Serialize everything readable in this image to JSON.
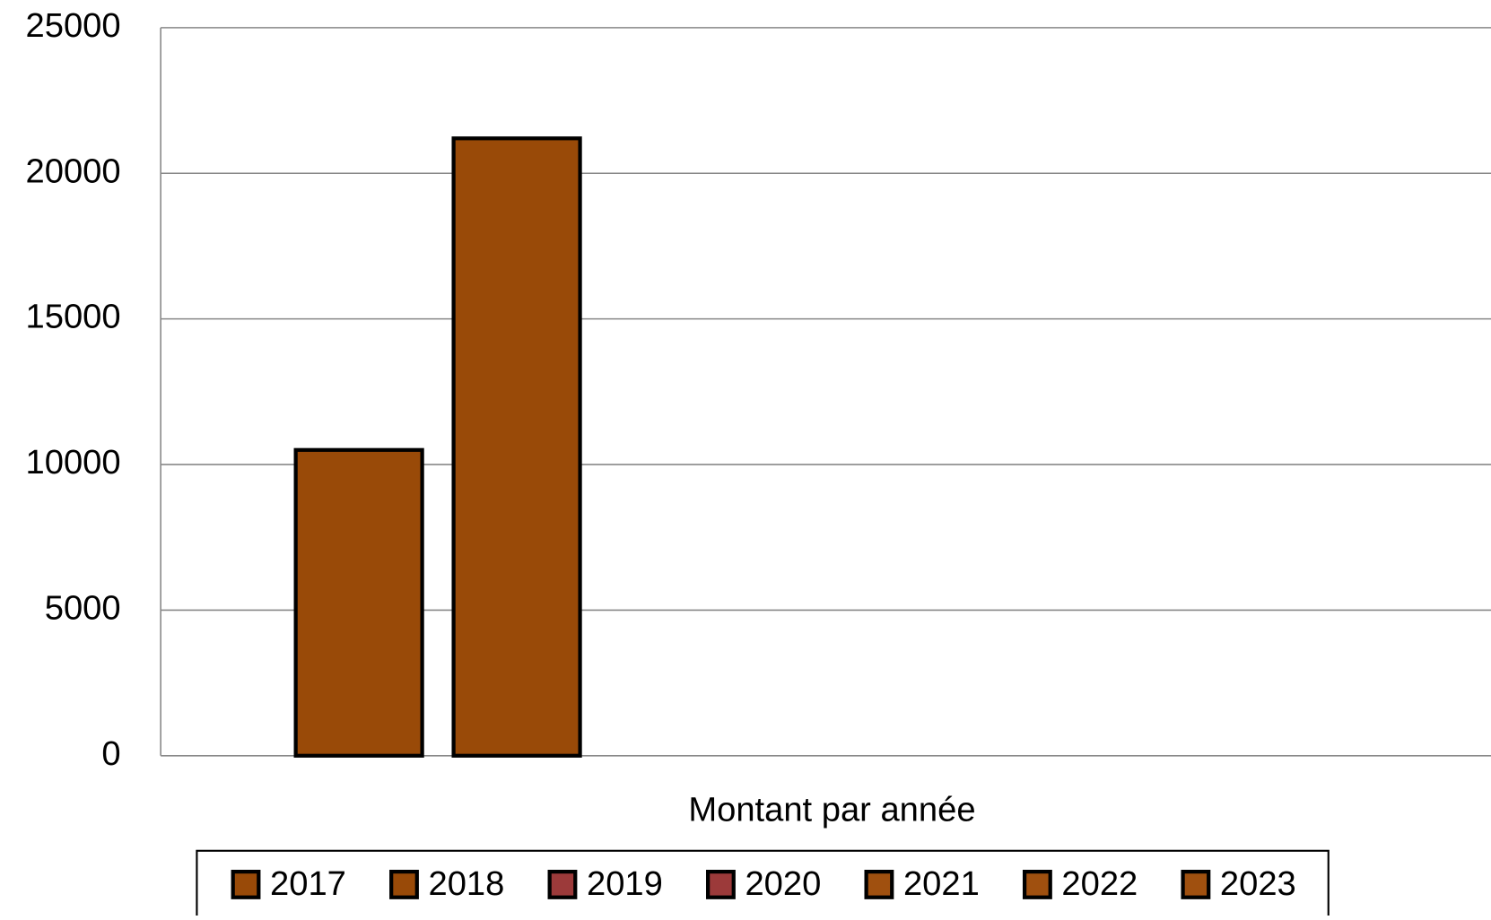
{
  "chart_data": {
    "type": "bar",
    "x_label": "Montant par année",
    "categories": [
      "Montant par année"
    ],
    "series": [
      {
        "name": "2017",
        "color": "#994a08",
        "values": [
          10500
        ]
      },
      {
        "name": "2018",
        "color": "#994a08",
        "values": [
          21200
        ]
      },
      {
        "name": "2019",
        "color": "#9c3a3a",
        "values": [
          0
        ]
      },
      {
        "name": "2020",
        "color": "#9c3a3a",
        "values": [
          0
        ]
      },
      {
        "name": "2021",
        "color": "#a0500f",
        "values": [
          0
        ]
      },
      {
        "name": "2022",
        "color": "#a0500f",
        "values": [
          0
        ]
      },
      {
        "name": "2023",
        "color": "#a0500f",
        "values": [
          0
        ]
      }
    ],
    "ylim": [
      0,
      25000
    ],
    "yticks": [
      0,
      5000,
      10000,
      15000,
      20000,
      25000
    ],
    "grid": true,
    "legend": "bottom"
  }
}
